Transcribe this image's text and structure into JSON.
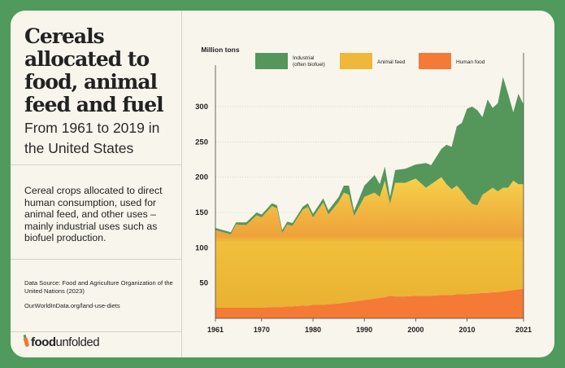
{
  "panel": {
    "title": "Cereals allocated to food, animal feed and fuel",
    "subtitle": "From 1961 to 2019 in the United States",
    "description": "Cereal crops allocated to direct human consumption, used for animal feed, and other uses – mainly industrial uses such as biofuel production.",
    "source": "Data Source: Food and Agriculture Organization of the United Nations (2023)",
    "url": "OurWorldInData.org/land-use-diets",
    "logo": {
      "bold": "food",
      "rest": "unfolded"
    }
  },
  "colors": {
    "border": "#4f9a5c",
    "industrial": "#55975b",
    "animal_feed": "#f0b73a",
    "human_food": "#f47a35"
  },
  "chart_data": {
    "type": "area",
    "stacked": true,
    "ylabel": "Million tons",
    "ylim": [
      0,
      350
    ],
    "yticks": [
      50,
      100,
      150,
      200,
      250,
      300
    ],
    "xticks": [
      1961,
      1970,
      1980,
      1990,
      2000,
      2010,
      2021
    ],
    "xlim": [
      1961,
      2021
    ],
    "grid": true,
    "legend": "top",
    "x": [
      1961,
      1964,
      1965,
      1967,
      1969,
      1970,
      1972,
      1973,
      1974,
      1975,
      1976,
      1978,
      1979,
      1980,
      1982,
      1983,
      1985,
      1986,
      1987,
      1988,
      1990,
      1992,
      1993,
      1994,
      1995,
      1996,
      1998,
      2000,
      2002,
      2003,
      2005,
      2006,
      2007,
      2008,
      2009,
      2010,
      2011,
      2012,
      2013,
      2014,
      2015,
      2016,
      2017,
      2018,
      2019,
      2020,
      2021
    ],
    "series": [
      {
        "name": "Human food",
        "values": [
          15,
          15,
          15,
          15,
          15,
          15,
          16,
          16,
          16,
          17,
          17,
          18,
          18,
          19,
          19,
          20,
          21,
          22,
          23,
          24,
          26,
          28,
          29,
          30,
          32,
          31,
          31,
          32,
          32,
          32,
          33,
          33,
          33,
          34,
          34,
          34,
          35,
          35,
          36,
          36,
          37,
          37,
          38,
          39,
          40,
          41,
          42
        ]
      },
      {
        "name": "Animal feed",
        "values": [
          110,
          104,
          118,
          117,
          131,
          128,
          143,
          140,
          105,
          116,
          114,
          136,
          140,
          124,
          145,
          127,
          144,
          156,
          152,
          121,
          146,
          150,
          143,
          165,
          130,
          161,
          161,
          166,
          153,
          158,
          167,
          157,
          150,
          154,
          146,
          136,
          127,
          125,
          139,
          144,
          148,
          143,
          147,
          146,
          155,
          149,
          148
        ]
      },
      {
        "name": "Industrial (often biofuel)",
        "values": [
          3,
          3,
          3,
          4,
          4,
          4,
          4,
          4,
          4,
          4,
          4,
          4,
          5,
          5,
          6,
          6,
          7,
          10,
          13,
          7,
          16,
          25,
          18,
          20,
          10,
          18,
          20,
          20,
          35,
          27,
          40,
          56,
          60,
          84,
          97,
          127,
          138,
          135,
          110,
          130,
          113,
          125,
          157,
          133,
          97,
          128,
          113
        ]
      }
    ]
  }
}
